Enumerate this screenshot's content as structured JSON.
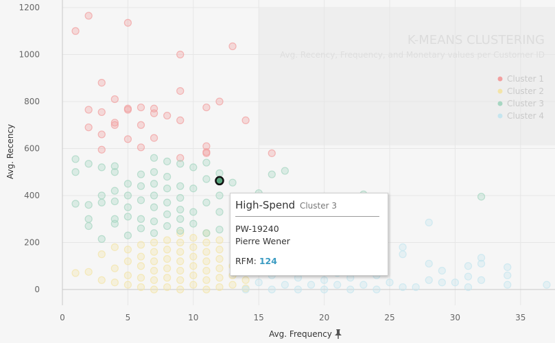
{
  "chart_data": {
    "type": "scatter",
    "title": "K-MEANS CLUSTERING",
    "subtitle": "Avg. Recency, Frequency, and Monetary values per Customer ID",
    "xlabel": "Avg. Frequency",
    "ylabel": "Avg. Recency",
    "xlim": [
      -0.5,
      37.5
    ],
    "ylim": [
      -20,
      1230
    ],
    "x_ticks": [
      0,
      5,
      10,
      15,
      20,
      25,
      30,
      35
    ],
    "y_ticks": [
      0,
      200,
      400,
      600,
      800,
      1000,
      1200
    ],
    "grid": true,
    "legend_position": "top-right",
    "series": [
      {
        "name": "Cluster 1",
        "color": "#f2a0a0",
        "points": [
          [
            1,
            1100
          ],
          [
            2,
            1165
          ],
          [
            5,
            1135
          ],
          [
            13,
            1035
          ],
          [
            9,
            1000
          ],
          [
            3,
            880
          ],
          [
            4,
            810
          ],
          [
            9,
            845
          ],
          [
            2,
            765
          ],
          [
            3,
            755
          ],
          [
            5,
            770
          ],
          [
            5,
            765
          ],
          [
            6,
            775
          ],
          [
            7,
            770
          ],
          [
            7,
            750
          ],
          [
            8,
            740
          ],
          [
            11,
            775
          ],
          [
            12,
            800
          ],
          [
            4,
            710
          ],
          [
            4,
            700
          ],
          [
            6,
            700
          ],
          [
            9,
            720
          ],
          [
            14,
            720
          ],
          [
            2,
            690
          ],
          [
            3,
            660
          ],
          [
            5,
            640
          ],
          [
            7,
            645
          ],
          [
            3,
            595
          ],
          [
            6,
            605
          ],
          [
            11,
            610
          ],
          [
            11,
            585
          ],
          [
            11,
            580
          ],
          [
            16,
            580
          ],
          [
            9,
            560
          ]
        ]
      },
      {
        "name": "Cluster 2",
        "color": "#f3e4a8",
        "points": [
          [
            1,
            70
          ],
          [
            2,
            75
          ],
          [
            3,
            40
          ],
          [
            3,
            150
          ],
          [
            4,
            30
          ],
          [
            4,
            90
          ],
          [
            4,
            180
          ],
          [
            5,
            20
          ],
          [
            5,
            60
          ],
          [
            5,
            120
          ],
          [
            5,
            170
          ],
          [
            6,
            10
          ],
          [
            6,
            50
          ],
          [
            6,
            100
          ],
          [
            6,
            140
          ],
          [
            6,
            190
          ],
          [
            7,
            0
          ],
          [
            7,
            40
          ],
          [
            7,
            80
          ],
          [
            7,
            120
          ],
          [
            7,
            160
          ],
          [
            7,
            200
          ],
          [
            8,
            10
          ],
          [
            8,
            50
          ],
          [
            8,
            90
          ],
          [
            8,
            130
          ],
          [
            8,
            170
          ],
          [
            8,
            210
          ],
          [
            9,
            0
          ],
          [
            9,
            40
          ],
          [
            9,
            80
          ],
          [
            9,
            120
          ],
          [
            9,
            160
          ],
          [
            9,
            200
          ],
          [
            9,
            240
          ],
          [
            10,
            20
          ],
          [
            10,
            60
          ],
          [
            10,
            100
          ],
          [
            10,
            140
          ],
          [
            10,
            180
          ],
          [
            10,
            220
          ],
          [
            11,
            0
          ],
          [
            11,
            40
          ],
          [
            11,
            80
          ],
          [
            11,
            120
          ],
          [
            11,
            160
          ],
          [
            11,
            200
          ],
          [
            11,
            240
          ],
          [
            12,
            10
          ],
          [
            12,
            50
          ],
          [
            12,
            90
          ],
          [
            12,
            130
          ],
          [
            12,
            170
          ],
          [
            12,
            210
          ],
          [
            13,
            20
          ],
          [
            13,
            60
          ],
          [
            13,
            100
          ],
          [
            14,
            5
          ],
          [
            14,
            40
          ]
        ]
      },
      {
        "name": "Cluster 3",
        "color": "#a7d6c2",
        "points": [
          [
            1,
            555
          ],
          [
            1,
            500
          ],
          [
            1,
            365
          ],
          [
            2,
            535
          ],
          [
            2,
            360
          ],
          [
            2,
            300
          ],
          [
            2,
            270
          ],
          [
            3,
            520
          ],
          [
            3,
            400
          ],
          [
            3,
            370
          ],
          [
            3,
            215
          ],
          [
            4,
            525
          ],
          [
            4,
            500
          ],
          [
            4,
            420
          ],
          [
            4,
            375
          ],
          [
            4,
            300
          ],
          [
            4,
            280
          ],
          [
            5,
            450
          ],
          [
            5,
            400
          ],
          [
            5,
            350
          ],
          [
            5,
            310
          ],
          [
            5,
            230
          ],
          [
            6,
            490
          ],
          [
            6,
            440
          ],
          [
            6,
            380
          ],
          [
            6,
            300
          ],
          [
            6,
            260
          ],
          [
            7,
            560
          ],
          [
            7,
            500
          ],
          [
            7,
            450
          ],
          [
            7,
            400
          ],
          [
            7,
            350
          ],
          [
            7,
            290
          ],
          [
            7,
            240
          ],
          [
            8,
            545
          ],
          [
            8,
            480
          ],
          [
            8,
            430
          ],
          [
            8,
            370
          ],
          [
            8,
            320
          ],
          [
            8,
            270
          ],
          [
            9,
            535
          ],
          [
            9,
            440
          ],
          [
            9,
            390
          ],
          [
            9,
            340
          ],
          [
            9,
            300
          ],
          [
            9,
            250
          ],
          [
            10,
            520
          ],
          [
            10,
            430
          ],
          [
            10,
            330
          ],
          [
            10,
            280
          ],
          [
            11,
            540
          ],
          [
            11,
            470
          ],
          [
            11,
            370
          ],
          [
            11,
            240
          ],
          [
            12,
            495
          ],
          [
            12,
            400
          ],
          [
            12,
            330
          ],
          [
            12,
            255
          ],
          [
            13,
            455
          ],
          [
            15,
            410
          ],
          [
            16,
            490
          ],
          [
            17,
            505
          ],
          [
            16,
            380
          ],
          [
            18,
            350
          ],
          [
            23,
            405
          ],
          [
            32,
            395
          ]
        ]
      },
      {
        "name": "Cluster 4",
        "color": "#c5e5ef",
        "points": [
          [
            14,
            0
          ],
          [
            15,
            30
          ],
          [
            15,
            80
          ],
          [
            16,
            0
          ],
          [
            16,
            60
          ],
          [
            17,
            20
          ],
          [
            17,
            90
          ],
          [
            18,
            0
          ],
          [
            18,
            50
          ],
          [
            18,
            120
          ],
          [
            19,
            20
          ],
          [
            19,
            80
          ],
          [
            20,
            0
          ],
          [
            20,
            40
          ],
          [
            20,
            100
          ],
          [
            21,
            20
          ],
          [
            21,
            70
          ],
          [
            22,
            0
          ],
          [
            22,
            50
          ],
          [
            23,
            20
          ],
          [
            24,
            0
          ],
          [
            24,
            60
          ],
          [
            25,
            30
          ],
          [
            26,
            180
          ],
          [
            26,
            150
          ],
          [
            26,
            10
          ],
          [
            27,
            10
          ],
          [
            28,
            285
          ],
          [
            28,
            110
          ],
          [
            28,
            40
          ],
          [
            29,
            80
          ],
          [
            29,
            30
          ],
          [
            30,
            30
          ],
          [
            31,
            100
          ],
          [
            31,
            55
          ],
          [
            31,
            10
          ],
          [
            32,
            135
          ],
          [
            32,
            110
          ],
          [
            32,
            40
          ],
          [
            34,
            95
          ],
          [
            34,
            60
          ],
          [
            34,
            20
          ],
          [
            37,
            20
          ]
        ]
      }
    ],
    "highlight": {
      "x": 12,
      "y": 463,
      "color": "#5aa67f"
    }
  },
  "tooltip": {
    "title": "High-Spend",
    "cluster": "Cluster 3",
    "id": "PW-19240",
    "name": "Pierre Wener",
    "rfm_label": "RFM",
    "rfm_value": "124"
  },
  "icons": {
    "pin": "pin-icon"
  },
  "colors": {
    "background": "#f6f6f6",
    "legend_panel": "#eeeeee",
    "accent": "#3b9bc2"
  }
}
